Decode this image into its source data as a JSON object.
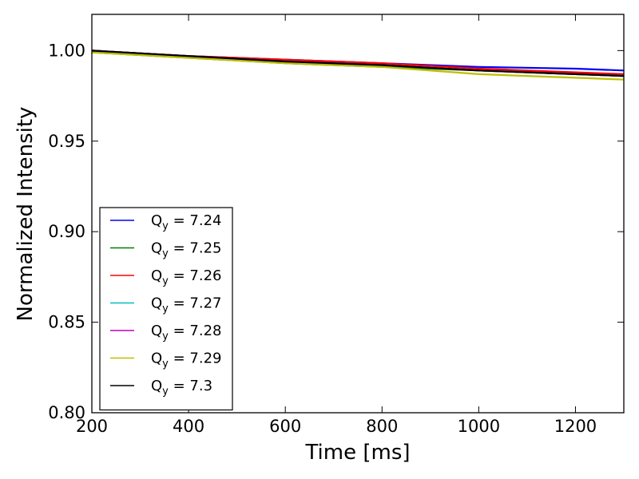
{
  "chart_data": {
    "type": "line",
    "xlabel": "Time [ms]",
    "ylabel": "Normalized Intensity",
    "xlim": [
      200,
      1300
    ],
    "ylim": [
      0.8,
      1.02
    ],
    "xticks": [
      200,
      400,
      600,
      800,
      1000,
      1200
    ],
    "xtick_labels": [
      "200",
      "400",
      "600",
      "800",
      "1000",
      "1200"
    ],
    "yticks": [
      0.8,
      0.85,
      0.9,
      0.95,
      1.0
    ],
    "ytick_labels": [
      "0.80",
      "0.85",
      "0.90",
      "0.95",
      "1.00"
    ],
    "grid": false,
    "legend_position": "lower-left",
    "series": [
      {
        "name": "7.24",
        "color": "#0000ff",
        "x": [
          200,
          400,
          600,
          800,
          1000,
          1200,
          1300
        ],
        "y": [
          1.0,
          0.997,
          0.995,
          0.993,
          0.991,
          0.99,
          0.989
        ]
      },
      {
        "name": "7.25",
        "color": "#008000",
        "x": [
          200,
          400,
          600,
          800,
          1000,
          1200,
          1300
        ],
        "y": [
          0.999,
          0.996,
          0.993,
          0.991,
          0.989,
          0.987,
          0.986
        ]
      },
      {
        "name": "7.26",
        "color": "#ff0000",
        "x": [
          200,
          400,
          600,
          800,
          1000,
          1200,
          1300
        ],
        "y": [
          1.0,
          0.997,
          0.995,
          0.993,
          0.99,
          0.988,
          0.987
        ]
      },
      {
        "name": "7.27",
        "color": "#00bfbf",
        "x": [
          200,
          400,
          600,
          800,
          1000,
          1200,
          1300
        ],
        "y": [
          1.0,
          0.997,
          0.994,
          0.992,
          0.989,
          0.987,
          0.986
        ]
      },
      {
        "name": "7.28",
        "color": "#bf00bf",
        "x": [
          200,
          400,
          600,
          800,
          1000,
          1200,
          1300
        ],
        "y": [
          1.0,
          0.997,
          0.994,
          0.992,
          0.989,
          0.987,
          0.986
        ]
      },
      {
        "name": "7.29",
        "color": "#bfbf00",
        "x": [
          200,
          400,
          600,
          800,
          1000,
          1200,
          1300
        ],
        "y": [
          0.999,
          0.996,
          0.993,
          0.991,
          0.987,
          0.985,
          0.984
        ]
      },
      {
        "name": "7.3",
        "color": "#000000",
        "x": [
          200,
          400,
          600,
          800,
          1000,
          1200,
          1300
        ],
        "y": [
          1.0,
          0.997,
          0.994,
          0.992,
          0.989,
          0.987,
          0.986
        ]
      }
    ],
    "legend_prefix": "Q",
    "legend_subscript": "y"
  }
}
